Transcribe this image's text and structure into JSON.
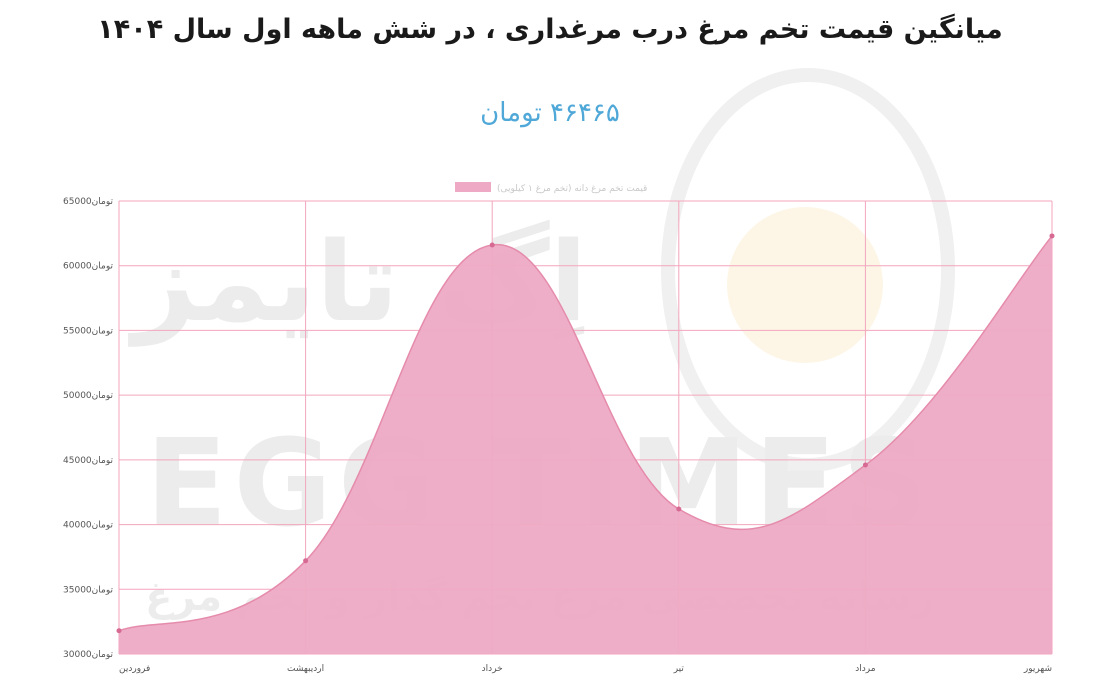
{
  "chart_data": {
    "type": "area",
    "title": "میانگین قیمت تخم مرغ درب مرغداری ، در شش ماهه اول سال ۱۴۰۴",
    "subtitle": "۴۶۴۶۵ تومان",
    "categories": [
      "فروردین",
      "اردیبهشت",
      "خرداد",
      "تیر",
      "مرداد",
      "شهریور"
    ],
    "series": [
      {
        "name": "قیمت تخم مرغ دانه (تخم مرغ ۱ کیلویی)",
        "values": [
          31800,
          37200,
          61600,
          41200,
          44600,
          62300
        ]
      }
    ],
    "yticks": [
      "30000تومان",
      "35000تومان",
      "40000تومان",
      "45000تومان",
      "50000تومان",
      "55000تومان",
      "60000تومان",
      "65000تومان"
    ],
    "ylim": [
      30000,
      65000
    ],
    "grid": true,
    "legend_position": "top",
    "colors": {
      "fill": "#eeaac4",
      "line": "#e58bab",
      "grid": "#f3a6bd",
      "point": "#d66a93"
    },
    "watermark": {
      "brand_fa": "اِگ تایمز",
      "brand_en": "EGG TIMES",
      "tagline": "رسانه تخصصی مرغ تخم گذار و تخم مرغ"
    }
  }
}
